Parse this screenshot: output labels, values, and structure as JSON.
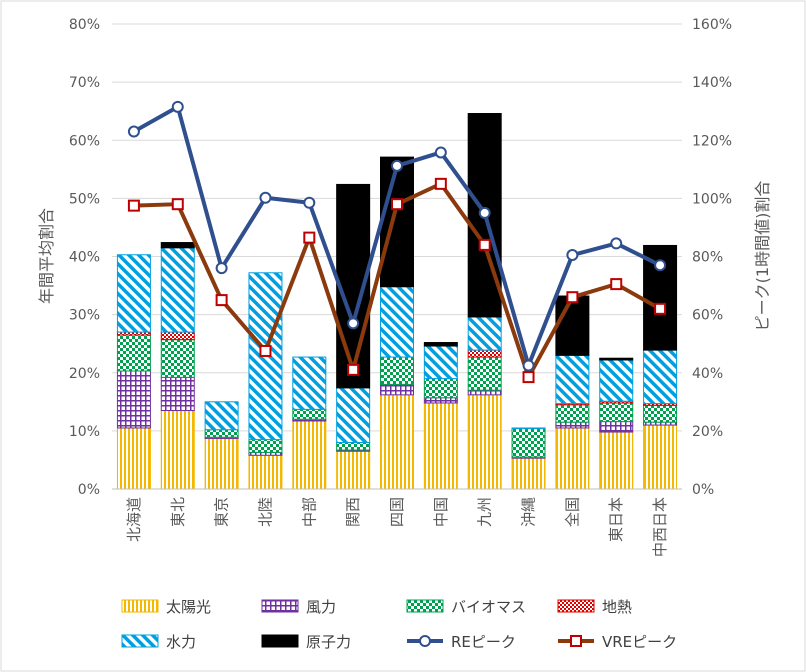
{
  "chart_data": {
    "type": "bar",
    "categories": [
      "北海道",
      "東北",
      "東京",
      "北陸",
      "中部",
      "関西",
      "四国",
      "中国",
      "九州",
      "沖縄",
      "全国",
      "東日本",
      "中西日本"
    ],
    "stacked": true,
    "series": [
      {
        "name": "太陽光",
        "axis": "left",
        "type": "bar",
        "color": "#F5B800",
        "pattern": "vertical-lines",
        "values": [
          10.5,
          13.5,
          8.7,
          5.8,
          11.7,
          6.5,
          16.2,
          14.8,
          16.2,
          5.3,
          10.5,
          9.8,
          11.0
        ]
      },
      {
        "name": "風力",
        "axis": "left",
        "type": "bar",
        "color": "#7030A0",
        "pattern": "grid",
        "values": [
          9.8,
          5.7,
          0.2,
          0.5,
          0.3,
          0.2,
          1.8,
          0.9,
          0.8,
          0.2,
          1.0,
          1.8,
          0.5
        ]
      },
      {
        "name": "バイオマス",
        "axis": "left",
        "type": "bar",
        "color": "#00A050",
        "pattern": "checker",
        "values": [
          6.2,
          6.5,
          1.3,
          2.2,
          1.7,
          1.3,
          4.7,
          3.3,
          5.7,
          4.9,
          3.0,
          3.2,
          2.9
        ]
      },
      {
        "name": "地熱",
        "axis": "left",
        "type": "bar",
        "color": "#E00000",
        "pattern": "checker",
        "values": [
          0.5,
          1.3,
          0,
          0,
          0,
          0,
          0,
          0,
          1.2,
          0,
          0.2,
          0.3,
          0.3
        ]
      },
      {
        "name": "水力",
        "axis": "left",
        "type": "bar",
        "color": "#00A0E0",
        "pattern": "diagonal",
        "values": [
          13.3,
          14.5,
          4.8,
          28.7,
          9.0,
          9.4,
          12.1,
          5.6,
          5.7,
          0.1,
          8.3,
          7.1,
          9.2
        ]
      },
      {
        "name": "原子力",
        "axis": "left",
        "type": "bar",
        "color": "#000000",
        "pattern": "solid",
        "values": [
          0,
          0.9,
          0,
          0,
          0,
          35.0,
          22.3,
          0.6,
          35.0,
          0,
          10.2,
          0.3,
          18.0
        ]
      },
      {
        "name": "REピーク",
        "axis": "right",
        "type": "line",
        "color": "#2F4F8F",
        "marker": "circle",
        "values": [
          123.0,
          131.5,
          76.0,
          100.2,
          98.5,
          57.0,
          111.2,
          115.8,
          95.0,
          42.5,
          80.5,
          84.5,
          77.0
        ]
      },
      {
        "name": "VREピーク",
        "axis": "right",
        "type": "line",
        "color": "#8B3A0E",
        "marker": "square",
        "values": [
          97.5,
          98.0,
          65.0,
          47.5,
          86.5,
          41.0,
          98.0,
          105.0,
          84.0,
          38.5,
          66.0,
          70.5,
          62.0
        ]
      }
    ],
    "y_left": {
      "label": "年間平均割合",
      "min": 0,
      "max": 80,
      "step": 10,
      "ticks": [
        "0%",
        "10%",
        "20%",
        "30%",
        "40%",
        "50%",
        "60%",
        "70%",
        "80%"
      ]
    },
    "y_right": {
      "label": "ピーク(1時間値)割合",
      "min": 0,
      "max": 160,
      "step": 20,
      "ticks": [
        "0%",
        "20%",
        "40%",
        "60%",
        "80%",
        "100%",
        "120%",
        "140%",
        "160%"
      ]
    },
    "grid": true,
    "legend_position": "bottom"
  }
}
